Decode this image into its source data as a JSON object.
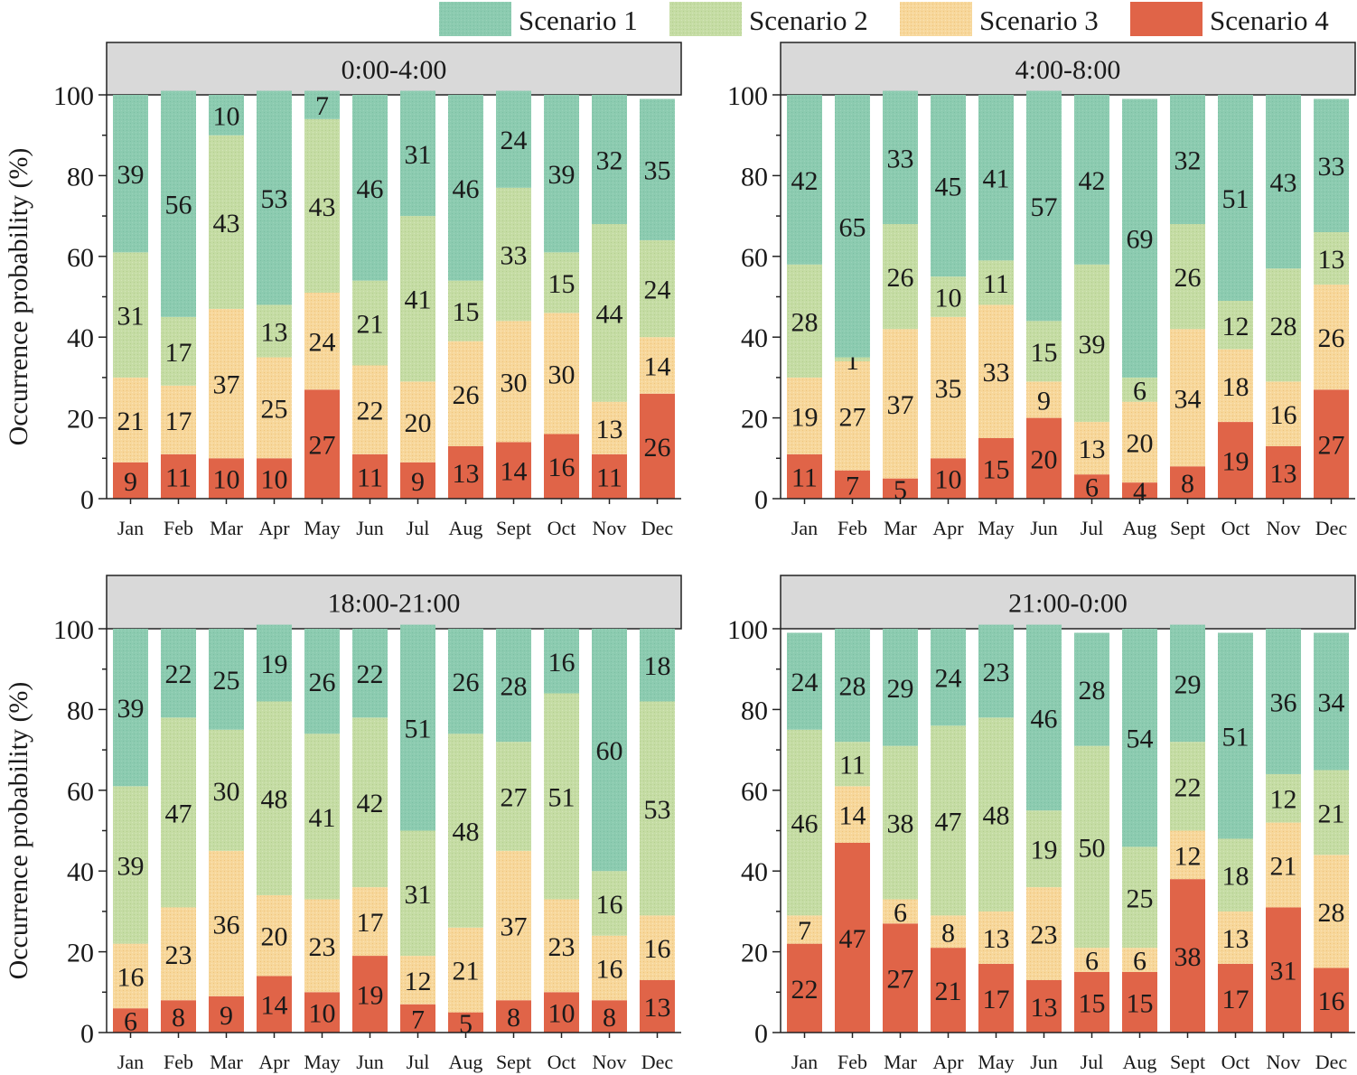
{
  "chart_data": {
    "type": "bar",
    "stacked": true,
    "ylabel": "Occurrence probability (%)",
    "ylim": [
      0,
      100
    ],
    "yticks": [
      "0",
      "20",
      "40",
      "60",
      "80",
      "100"
    ],
    "categories": [
      "Jan",
      "Feb",
      "Mar",
      "Apr",
      "May",
      "Jun",
      "Jul",
      "Aug",
      "Sept",
      "Oct",
      "Nov",
      "Dec"
    ],
    "legend": {
      "position": "top-right",
      "entries": [
        {
          "name": "Scenario 1",
          "color": "#8ccbb0"
        },
        {
          "name": "Scenario 2",
          "color": "#c5dca4"
        },
        {
          "name": "Scenario 3",
          "color": "#f7d79b"
        },
        {
          "name": "Scenario 4",
          "color": "#e06448"
        }
      ]
    },
    "panels": [
      {
        "title": "0:00-4:00",
        "series": [
          {
            "name": "Scenario 4",
            "values": [
              9,
              11,
              10,
              10,
              27,
              11,
              9,
              13,
              14,
              16,
              11,
              26
            ]
          },
          {
            "name": "Scenario 3",
            "values": [
              21,
              17,
              37,
              25,
              24,
              22,
              20,
              26,
              30,
              30,
              13,
              14
            ]
          },
          {
            "name": "Scenario 2",
            "values": [
              31,
              17,
              43,
              13,
              43,
              21,
              41,
              15,
              33,
              15,
              44,
              24
            ]
          },
          {
            "name": "Scenario 1",
            "values": [
              39,
              56,
              10,
              53,
              7,
              46,
              31,
              46,
              24,
              39,
              32,
              35
            ]
          }
        ]
      },
      {
        "title": "4:00-8:00",
        "series": [
          {
            "name": "Scenario 4",
            "values": [
              11,
              7,
              5,
              10,
              15,
              20,
              6,
              4,
              8,
              19,
              13,
              27
            ]
          },
          {
            "name": "Scenario 3",
            "values": [
              19,
              27,
              37,
              35,
              33,
              9,
              13,
              20,
              34,
              18,
              16,
              26
            ]
          },
          {
            "name": "Scenario 2",
            "values": [
              28,
              1,
              26,
              10,
              11,
              15,
              39,
              6,
              26,
              12,
              28,
              13
            ]
          },
          {
            "name": "Scenario 1",
            "values": [
              42,
              65,
              33,
              45,
              41,
              57,
              42,
              69,
              32,
              51,
              43,
              33
            ]
          }
        ]
      },
      {
        "title": "18:00-21:00",
        "series": [
          {
            "name": "Scenario 4",
            "values": [
              6,
              8,
              9,
              14,
              10,
              19,
              7,
              5,
              8,
              10,
              8,
              13
            ]
          },
          {
            "name": "Scenario 3",
            "values": [
              16,
              23,
              36,
              20,
              23,
              17,
              12,
              21,
              37,
              23,
              16,
              16
            ]
          },
          {
            "name": "Scenario 2",
            "values": [
              39,
              47,
              30,
              48,
              41,
              42,
              31,
              48,
              27,
              51,
              16,
              53
            ]
          },
          {
            "name": "Scenario 1",
            "values": [
              39,
              22,
              25,
              19,
              26,
              22,
              51,
              26,
              28,
              16,
              60,
              18
            ]
          }
        ]
      },
      {
        "title": "21:00-0:00",
        "series": [
          {
            "name": "Scenario 4",
            "values": [
              22,
              47,
              27,
              21,
              17,
              13,
              15,
              15,
              38,
              17,
              31,
              16
            ]
          },
          {
            "name": "Scenario 3",
            "values": [
              7,
              14,
              6,
              8,
              13,
              23,
              6,
              6,
              12,
              13,
              21,
              28
            ]
          },
          {
            "name": "Scenario 2",
            "values": [
              46,
              11,
              38,
              47,
              48,
              19,
              50,
              25,
              22,
              18,
              12,
              21
            ]
          },
          {
            "name": "Scenario 1",
            "values": [
              24,
              28,
              29,
              24,
              23,
              46,
              28,
              54,
              29,
              51,
              36,
              34
            ]
          }
        ]
      }
    ]
  }
}
